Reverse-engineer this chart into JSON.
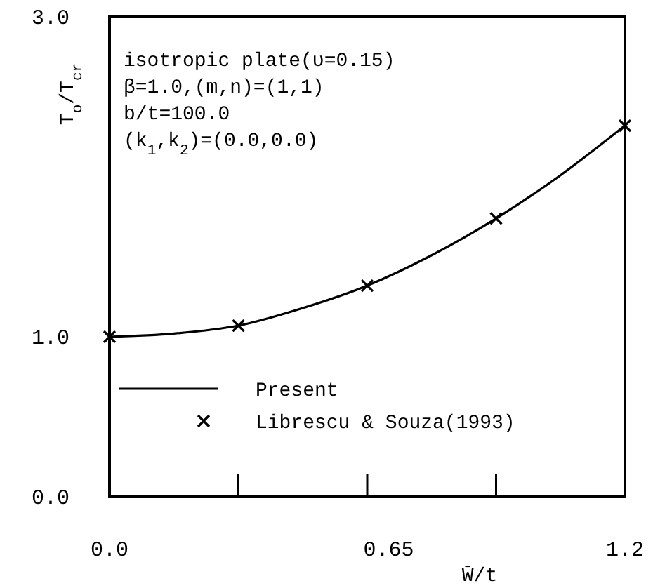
{
  "chart_data": {
    "type": "line",
    "xlabel": "W̄/t",
    "ylabel": "T$_{o}$/T$_{cr}$",
    "annotations": [
      "isotropic plate(υ=0.15)",
      "β=1.0,(m,n)=(1,1)",
      "b/t=100.0",
      "(k$_{1}$,k$_{2}$)=(0.0,0.0)"
    ],
    "series": [
      {
        "name": "Present",
        "color": "#000000",
        "type": "line",
        "marker": "none",
        "line_style": "solid",
        "x": [
          0,
          0.15,
          0.3,
          0.45,
          0.6,
          0.75,
          0.9,
          1.05,
          1.2
        ],
        "values": [
          1.0,
          1.02,
          1.07,
          1.18,
          1.32,
          1.51,
          1.74,
          2.01,
          2.32
        ]
      },
      {
        "name": "Librescu & Souza(1993)",
        "color": "#000000",
        "type": "scatter",
        "marker": "cross",
        "x": [
          0,
          0.3,
          0.6,
          0.9,
          1.2
        ],
        "values": [
          1.0,
          1.07,
          1.32,
          1.74,
          2.32
        ]
      }
    ],
    "xlim": [
      0,
      1.2
    ],
    "xticks": [
      {
        "value": 0,
        "label": "0.0"
      },
      {
        "value": 0.3,
        "label": null
      },
      {
        "value": 0.6,
        "label": null
      },
      {
        "value": 0.65,
        "label": "0.65"
      },
      {
        "value": 0.9,
        "label": null
      },
      {
        "value": 1.2,
        "label": "1.2"
      }
    ],
    "ylim": [
      0,
      3
    ],
    "yticks": [
      {
        "value": 0,
        "label": "0.0"
      },
      {
        "value": 1,
        "label": "1.0"
      },
      {
        "value": 3,
        "label": "3.0"
      }
    ],
    "grid": false,
    "legend": "bottom left"
  }
}
